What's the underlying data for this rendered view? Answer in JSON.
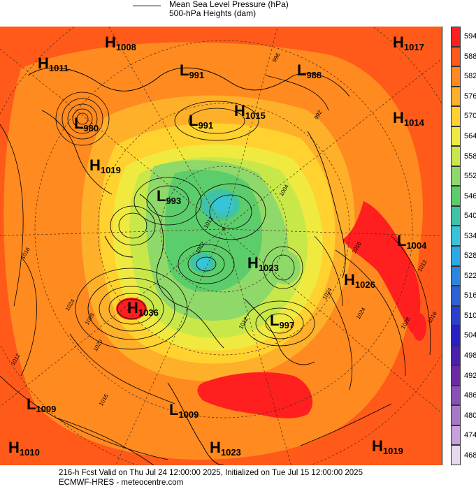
{
  "legend": {
    "line_label": "Mean Sea Level Pressure (hPa)",
    "fill_label": "500-hPa Heights (dam)"
  },
  "colorbar": {
    "levels": [
      "594",
      "588",
      "582",
      "576",
      "570",
      "564",
      "558",
      "552",
      "546",
      "540",
      "534",
      "528",
      "522",
      "516",
      "510",
      "504",
      "498",
      "492",
      "486",
      "480",
      "474",
      "468"
    ],
    "colors": [
      "#ff1f1f",
      "#ff5a1a",
      "#ff8a1f",
      "#ffb02a",
      "#ffd230",
      "#f0ea40",
      "#c8e84a",
      "#8fd86a",
      "#5ccd6b",
      "#3fc3a8",
      "#36c4d9",
      "#2aa9e6",
      "#2a86e0",
      "#2c62d6",
      "#2a3fcf",
      "#2a1fc5",
      "#4a20b0",
      "#6a2aa6",
      "#8a50b8",
      "#a878c8",
      "#c8a0dc",
      "#e8d8f0"
    ]
  },
  "pressure_centers": [
    {
      "type": "H",
      "value": "1008"
    },
    {
      "type": "H",
      "value": "1017"
    },
    {
      "type": "H",
      "value": "1011"
    },
    {
      "type": "L",
      "value": "991"
    },
    {
      "type": "L",
      "value": "988"
    },
    {
      "type": "L",
      "value": "980"
    },
    {
      "type": "H",
      "value": "1015"
    },
    {
      "type": "L",
      "value": "991"
    },
    {
      "type": "H",
      "value": "1014"
    },
    {
      "type": "H",
      "value": "1019"
    },
    {
      "type": "L",
      "value": "993"
    },
    {
      "type": "L",
      "value": "1004"
    },
    {
      "type": "H",
      "value": "1023"
    },
    {
      "type": "H",
      "value": "1026"
    },
    {
      "type": "H",
      "value": "1036"
    },
    {
      "type": "L",
      "value": "997"
    },
    {
      "type": "L",
      "value": "1009"
    },
    {
      "type": "L",
      "value": "1009"
    },
    {
      "type": "H",
      "value": "1010"
    },
    {
      "type": "H",
      "value": "1023"
    },
    {
      "type": "H",
      "value": "1019"
    }
  ],
  "isobar_labels": [
    "996",
    "992",
    "1004",
    "1012",
    "1012",
    "1016",
    "1024",
    "1024",
    "1028",
    "1028",
    "1020",
    "1016",
    "1012",
    "1016",
    "1012",
    "1016",
    "1012",
    "1024"
  ],
  "footer": {
    "line1": "216-h Fcst Valid on Thu Jul 24 12:00:00 2025, Initialized on Tue Jul 15 12:00:00 2025",
    "line2": "ECMWF-HRES  - meteocentre.com"
  }
}
